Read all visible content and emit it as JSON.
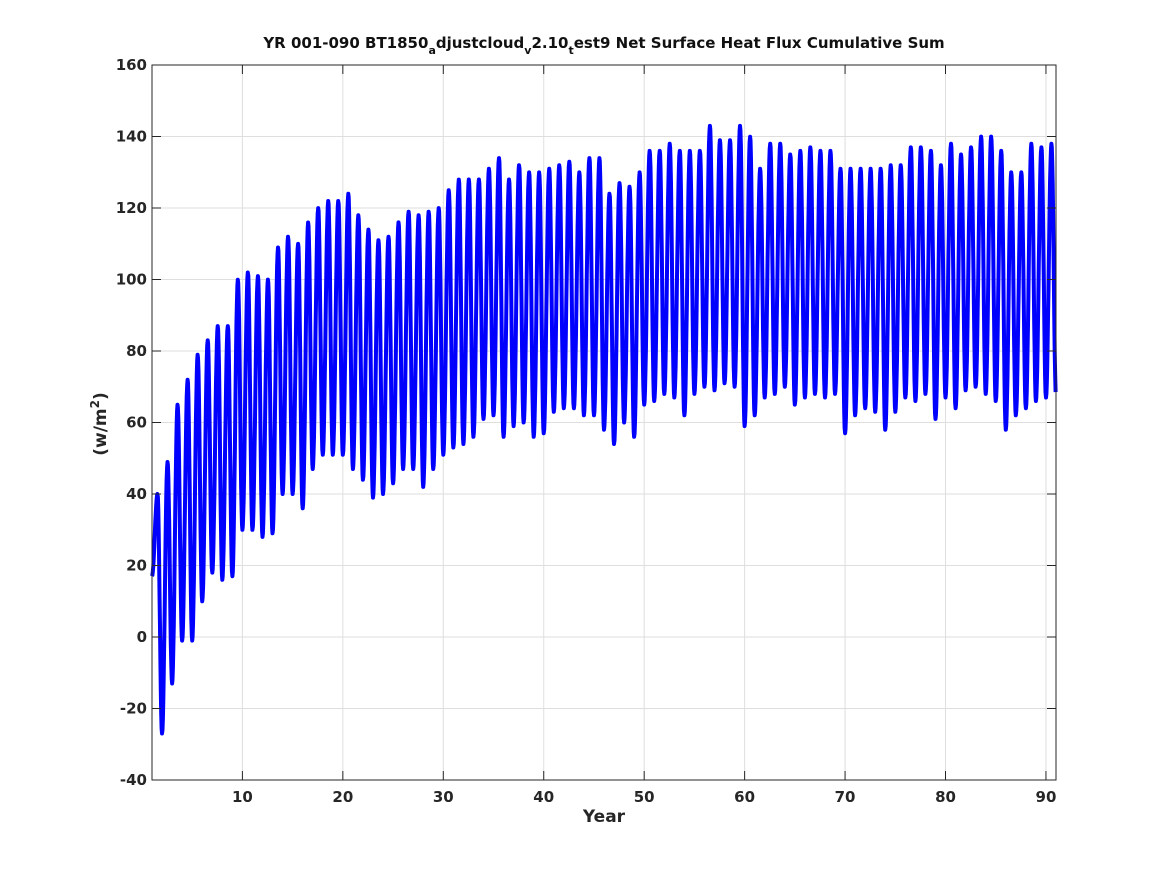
{
  "chart_data": {
    "type": "line",
    "title_parts": {
      "p1": "YR 001-090 BT1850",
      "sub1": "a",
      "p2": "djustcloud",
      "sub2": "v",
      "p3": "2.10",
      "sub3": "t",
      "p4": "est9 Net Surface Heat Flux  Cumulative Sum"
    },
    "xlabel": "Year",
    "ylabel_parts": {
      "base": "(w/m",
      "sup": "2",
      "close": ")"
    },
    "xlim": [
      1,
      91
    ],
    "ylim": [
      -40,
      160
    ],
    "x_ticks": [
      10,
      20,
      30,
      40,
      50,
      60,
      70,
      80,
      90
    ],
    "y_ticks": [
      -40,
      -20,
      0,
      20,
      40,
      60,
      80,
      100,
      120,
      140,
      160
    ],
    "grid": true,
    "series": [
      {
        "color": "#0000ff",
        "description": "seasonal cycle, one peak and one trough per year",
        "x_years": [
          1,
          2,
          3,
          4,
          5,
          6,
          7,
          8,
          9,
          10,
          11,
          12,
          13,
          14,
          15,
          16,
          17,
          18,
          19,
          20,
          21,
          22,
          23,
          24,
          25,
          26,
          27,
          28,
          29,
          30,
          31,
          32,
          33,
          34,
          35,
          36,
          37,
          38,
          39,
          40,
          41,
          42,
          43,
          44,
          45,
          46,
          47,
          48,
          49,
          50,
          51,
          52,
          53,
          54,
          55,
          56,
          57,
          58,
          59,
          60,
          61,
          62,
          63,
          64,
          65,
          66,
          67,
          68,
          69,
          70,
          71,
          72,
          73,
          74,
          75,
          76,
          77,
          78,
          79,
          80,
          81,
          82,
          83,
          84,
          85,
          86,
          87,
          88,
          89,
          90
        ],
        "annual_max": [
          40,
          49,
          65,
          72,
          79,
          83,
          87,
          87,
          100,
          102,
          101,
          100,
          109,
          112,
          110,
          116,
          120,
          122,
          122,
          124,
          118,
          114,
          111,
          112,
          116,
          119,
          118,
          119,
          120,
          125,
          128,
          128,
          128,
          131,
          134,
          128,
          132,
          130,
          130,
          131,
          132,
          133,
          130,
          134,
          134,
          124,
          127,
          126,
          130,
          136,
          136,
          138,
          136,
          136,
          136,
          143,
          139,
          139,
          143,
          140,
          131,
          138,
          138,
          135,
          136,
          137,
          136,
          136,
          131,
          131,
          131,
          131,
          131,
          132,
          132,
          137,
          137,
          136,
          132,
          138,
          135,
          137,
          140,
          140,
          136,
          130,
          130,
          138,
          137,
          138
        ],
        "annual_min": [
          17,
          -27,
          -13,
          -1,
          -1,
          10,
          18,
          16,
          17,
          30,
          30,
          28,
          29,
          40,
          40,
          36,
          47,
          51,
          51,
          51,
          47,
          44,
          39,
          40,
          43,
          47,
          47,
          42,
          47,
          51,
          53,
          54,
          56,
          61,
          62,
          56,
          59,
          60,
          56,
          57,
          63,
          64,
          64,
          62,
          62,
          58,
          54,
          60,
          56,
          65,
          66,
          68,
          67,
          62,
          68,
          70,
          69,
          71,
          70,
          59,
          62,
          67,
          68,
          70,
          65,
          67,
          68,
          67,
          68,
          57,
          62,
          64,
          63,
          58,
          63,
          67,
          66,
          68,
          61,
          67,
          64,
          69,
          70,
          68,
          66,
          58,
          62,
          64,
          66,
          67
        ]
      }
    ]
  }
}
